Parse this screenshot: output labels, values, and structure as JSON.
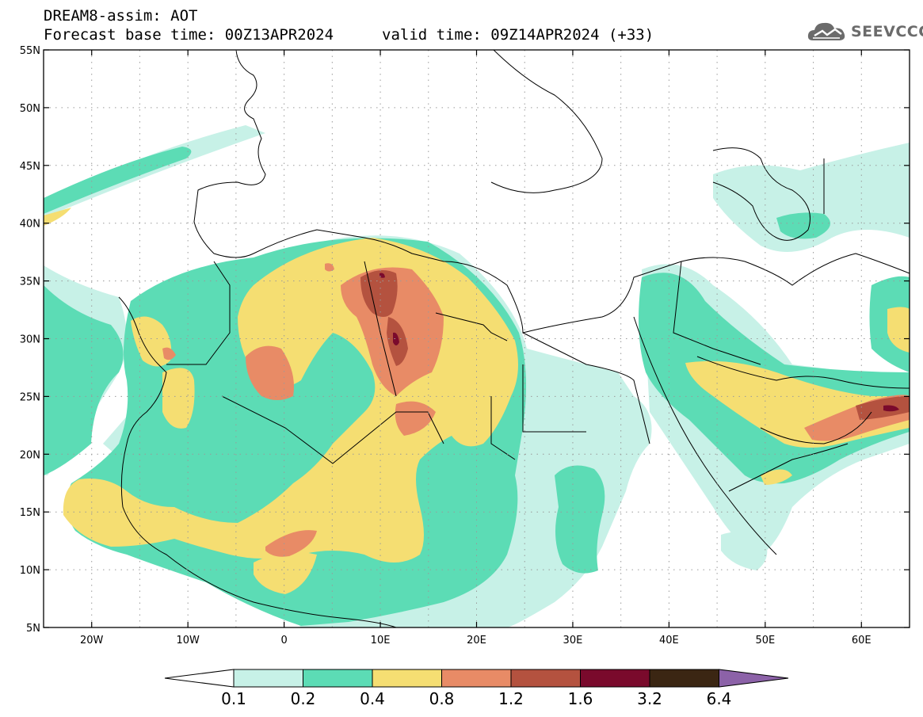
{
  "header": {
    "title": "DREAM8-assim: AOT",
    "base_time": "Forecast base time: 00Z13APR2024",
    "valid_time": "valid time: 09Z14APR2024 (+33)"
  },
  "logo": {
    "text": "SEEVCCC",
    "icon": "cloud-logo-icon"
  },
  "map": {
    "lon_range": [
      -25,
      65
    ],
    "lat_range": [
      5,
      55
    ],
    "lat_ticks": [
      {
        "v": 55,
        "label": "55N"
      },
      {
        "v": 50,
        "label": "50N"
      },
      {
        "v": 45,
        "label": "45N"
      },
      {
        "v": 40,
        "label": "40N"
      },
      {
        "v": 35,
        "label": "35N"
      },
      {
        "v": 30,
        "label": "30N"
      },
      {
        "v": 25,
        "label": "25N"
      },
      {
        "v": 20,
        "label": "20N"
      },
      {
        "v": 15,
        "label": "15N"
      },
      {
        "v": 10,
        "label": "10N"
      },
      {
        "v": 5,
        "label": "5N"
      }
    ],
    "lon_ticks": [
      {
        "v": -20,
        "label": "20W"
      },
      {
        "v": -10,
        "label": "10W"
      },
      {
        "v": 0,
        "label": "0"
      },
      {
        "v": 10,
        "label": "10E"
      },
      {
        "v": 20,
        "label": "20E"
      },
      {
        "v": 30,
        "label": "30E"
      },
      {
        "v": 40,
        "label": "40E"
      },
      {
        "v": 50,
        "label": "50E"
      },
      {
        "v": 60,
        "label": "60E"
      }
    ],
    "grid_spacing": 5,
    "grid": "dotted"
  },
  "colorbar": {
    "levels": [
      "0.1",
      "0.2",
      "0.4",
      "0.8",
      "1.2",
      "1.6",
      "3.2",
      "6.4"
    ],
    "colors": [
      "#c7f1e7",
      "#5cdcb5",
      "#f5de72",
      "#e88b66",
      "#b4523f",
      "#7a0a2c",
      "#3b2613",
      "#8c62a8"
    ],
    "under_color": "#ffffff"
  }
}
